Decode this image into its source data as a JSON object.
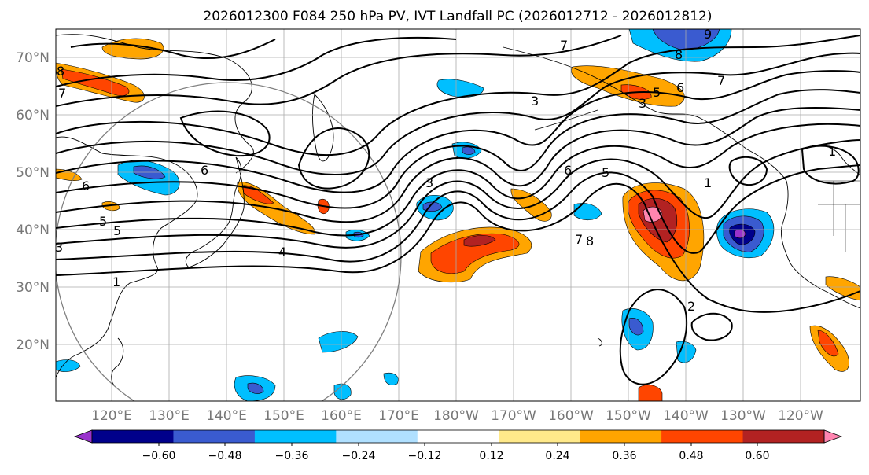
{
  "title": "2026012300 F084 250 hPa PV, IVT Landfall PC (2026012712 - 2026012812)",
  "map": {
    "lat_labels": [
      "70°N",
      "60°N",
      "50°N",
      "40°N",
      "30°N",
      "20°N"
    ],
    "lon_labels": [
      "120°E",
      "130°E",
      "140°E",
      "150°E",
      "160°E",
      "170°E",
      "180°W",
      "170°W",
      "160°W",
      "150°W",
      "140°W",
      "130°W",
      "120°W"
    ],
    "pv_contour_labels": [
      "8",
      "7",
      "9",
      "8",
      "7",
      "6",
      "5",
      "3",
      "3",
      "7",
      "6",
      "6",
      "5",
      "5",
      "3",
      "3",
      "6",
      "5",
      "1",
      "1",
      "4",
      "7",
      "8",
      "1",
      "2"
    ]
  },
  "colorbar": {
    "colors": [
      "#9932cc",
      "#00008b",
      "#3a5bd0",
      "#00bfff",
      "#b0e0ff",
      "#ffffff",
      "#ffe98a",
      "#ffa500",
      "#ff4500",
      "#b22222",
      "#ff85b0"
    ],
    "tick_labels": [
      "−0.60",
      "−0.48",
      "−0.36",
      "−0.24",
      "−0.12",
      "0.12",
      "0.24",
      "0.36",
      "0.48",
      "0.60"
    ]
  }
}
